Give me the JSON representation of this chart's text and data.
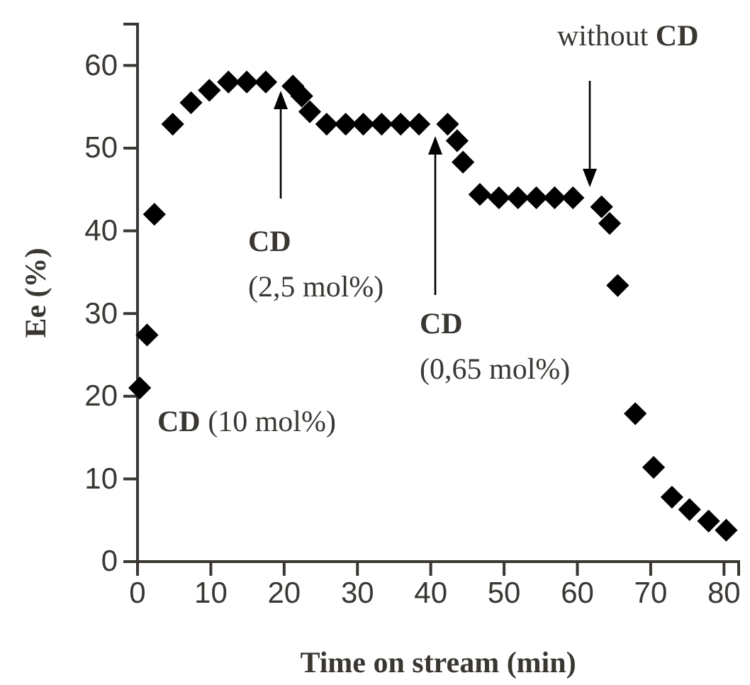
{
  "chart_data": {
    "type": "scatter",
    "xlabel": "Time on stream (min)",
    "ylabel": "Ee (%)",
    "xlim": [
      0,
      82
    ],
    "ylim": [
      0,
      65
    ],
    "xticks": [
      0,
      10,
      20,
      30,
      40,
      50,
      60,
      70,
      80
    ],
    "yticks": [
      0,
      10,
      20,
      30,
      40,
      50,
      60
    ],
    "grid": false,
    "marker": "diamond",
    "series": [
      {
        "color": "#000000",
        "x": [
          0.3,
          1.3,
          2.3,
          4.8,
          7.3,
          9.8,
          12.4,
          14.9,
          17.5,
          21.2,
          22.4,
          23.5,
          25.8,
          28.4,
          30.8,
          33.3,
          35.9,
          38.4,
          42.3,
          43.6,
          44.4,
          46.7,
          49.3,
          51.9,
          54.4,
          56.9,
          59.4,
          63.3,
          64.4,
          65.5,
          67.9,
          70.4,
          72.9,
          75.3,
          77.9,
          80.3
        ],
        "values": [
          21,
          27.4,
          42,
          52.9,
          55.5,
          57,
          58,
          58,
          58,
          57.5,
          56.3,
          54.4,
          52.9,
          52.9,
          52.9,
          52.9,
          52.9,
          52.9,
          52.9,
          50.9,
          48.3,
          44.4,
          44,
          44,
          44,
          44,
          44,
          42.9,
          40.9,
          33.4,
          17.9,
          11.4,
          7.8,
          6.3,
          4.9,
          3.8
        ]
      }
    ],
    "annotations": [
      "CD (10 mol%)",
      "CD (2,5 mol%)",
      "CD (0,65 mol%)",
      "without CD"
    ]
  }
}
